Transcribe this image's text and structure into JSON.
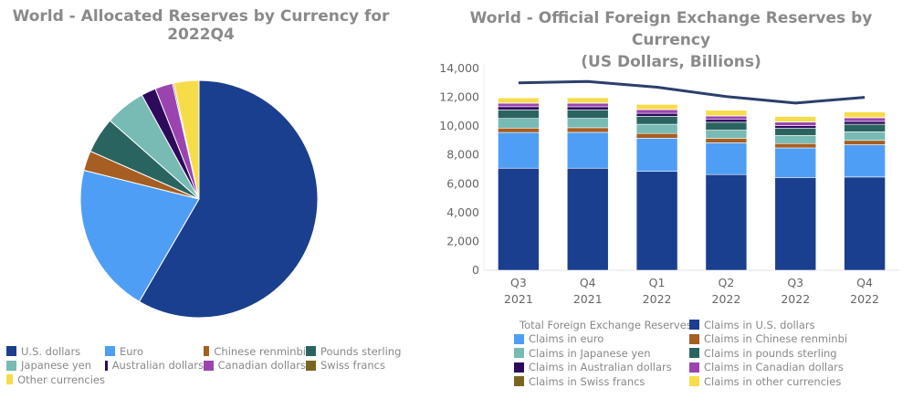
{
  "chart_data": [
    {
      "type": "pie",
      "title": "World - Allocated Reserves by Currency for 2022Q4",
      "categories": [
        "U.S. dollars",
        "Euro",
        "Chinese renminbi",
        "Pounds sterling",
        "Japanese yen",
        "Australian dollars",
        "Canadian dollars",
        "Swiss francs",
        "Other currencies"
      ],
      "values": [
        58.4,
        20.5,
        2.7,
        4.9,
        5.5,
        2.0,
        2.4,
        0.2,
        3.4
      ],
      "unit": "percent",
      "colors": [
        "#1a3f8f",
        "#4f9ef5",
        "#a65e22",
        "#2a6460",
        "#78bab4",
        "#2e0a5c",
        "#9b44b0",
        "#7a6520",
        "#f7dc4a"
      ],
      "legend_order": [
        "U.S. dollars",
        "Euro",
        "Chinese renminbi",
        "Pounds sterling",
        "Japanese yen",
        "Australian dollars",
        "Canadian dollars",
        "Swiss francs",
        "Other currencies"
      ],
      "legend_placement": "bottom"
    },
    {
      "type": "bar",
      "stacked": true,
      "title": "World - Official Foreign Exchange Reserves by Currency",
      "subtitle": "(US Dollars, Billions)",
      "categories": [
        [
          "Q3",
          "2021"
        ],
        [
          "Q4",
          "2021"
        ],
        [
          "Q1",
          "2022"
        ],
        [
          "Q2",
          "2022"
        ],
        [
          "Q3",
          "2022"
        ],
        [
          "Q4",
          "2022"
        ]
      ],
      "ylim": [
        0,
        14000
      ],
      "yticks": [
        "0",
        "2,000",
        "4,000",
        "6,000",
        "8,000",
        "10,000",
        "12,000",
        "14,000"
      ],
      "series": [
        {
          "name": "Claims in U.S. dollars",
          "color": "#1a3f8f",
          "values": [
            7080,
            7080,
            6860,
            6640,
            6440,
            6470
          ]
        },
        {
          "name": "Claims in euro",
          "color": "#4f9ef5",
          "values": [
            2480,
            2490,
            2300,
            2200,
            2050,
            2240
          ]
        },
        {
          "name": "Claims in Chinese renminbi",
          "color": "#a65e22",
          "values": [
            305,
            320,
            330,
            320,
            300,
            300
          ]
        },
        {
          "name": "Claims in Japanese yen",
          "color": "#78bab4",
          "values": [
            670,
            650,
            640,
            560,
            560,
            600
          ]
        },
        {
          "name": "Claims in pounds sterling",
          "color": "#2a6460",
          "values": [
            590,
            590,
            550,
            550,
            500,
            520
          ]
        },
        {
          "name": "Claims in Australian dollars",
          "color": "#2e0a5c",
          "values": [
            225,
            215,
            210,
            200,
            190,
            200
          ]
        },
        {
          "name": "Claims in Canadian dollars",
          "color": "#9b44b0",
          "values": [
            240,
            245,
            250,
            230,
            240,
            250
          ]
        },
        {
          "name": "Claims in Swiss francs",
          "color": "#7a6520",
          "values": [
            20,
            20,
            20,
            20,
            20,
            20
          ]
        },
        {
          "name": "Claims in other currencies",
          "color": "#f7dc4a",
          "values": [
            350,
            360,
            350,
            380,
            370,
            380
          ]
        }
      ],
      "line": {
        "name": "Total Foreign Exchange Reserves",
        "color": "#2b3f6b",
        "values": [
          13000,
          13100,
          12700,
          12050,
          11600,
          12000
        ]
      },
      "legend_order": [
        "Total Foreign Exchange Reserves",
        "Claims in U.S. dollars",
        "Claims in euro",
        "Claims in Chinese renminbi",
        "Claims in Japanese yen",
        "Claims in pounds sterling",
        "Claims in Australian dollars",
        "Claims in Canadian dollars",
        "Claims in Swiss francs",
        "Claims in other currencies"
      ],
      "legend_placement": "bottom"
    }
  ]
}
